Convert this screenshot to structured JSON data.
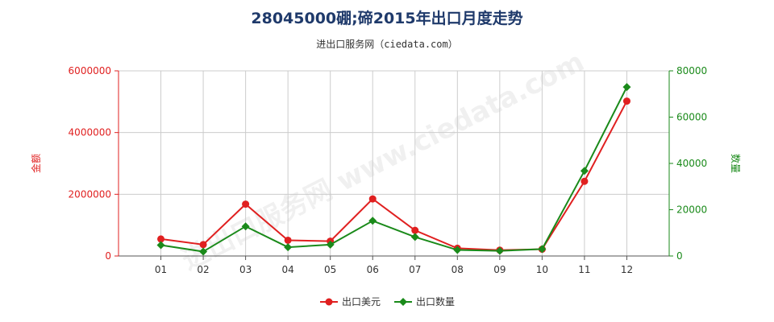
{
  "chart_data": {
    "type": "line",
    "title": "28045000硼;碲2015年出口月度走势",
    "subtitle": "进出口服务网（ciedata.com）",
    "watermark": "进出口服务网 www.ciedata.com",
    "categories": [
      "01",
      "02",
      "03",
      "04",
      "05",
      "06",
      "07",
      "08",
      "09",
      "10",
      "11",
      "12"
    ],
    "y_left": {
      "label": "金额",
      "ticks": [
        "0",
        "2000000",
        "4000000",
        "6000000"
      ],
      "range": [
        0,
        6000000
      ],
      "color": "#e02020"
    },
    "y_right": {
      "label": "数量",
      "ticks": [
        "0",
        "20000",
        "40000",
        "60000",
        "80000"
      ],
      "range": [
        0,
        80000
      ],
      "color": "#1a8a1a"
    },
    "grid": true,
    "legend_position": "bottom-center",
    "series": [
      {
        "name": "出口美元",
        "axis": "left",
        "color": "#e02020",
        "marker": "circle",
        "values": [
          550000,
          370000,
          1680000,
          510000,
          480000,
          1850000,
          830000,
          250000,
          190000,
          220000,
          2420000,
          5020000
        ]
      },
      {
        "name": "出口数量",
        "axis": "right",
        "color": "#1a8a1a",
        "marker": "diamond",
        "values": [
          4700,
          1900,
          12800,
          3800,
          4900,
          15200,
          8200,
          2600,
          2200,
          3000,
          36800,
          73000
        ]
      }
    ]
  }
}
